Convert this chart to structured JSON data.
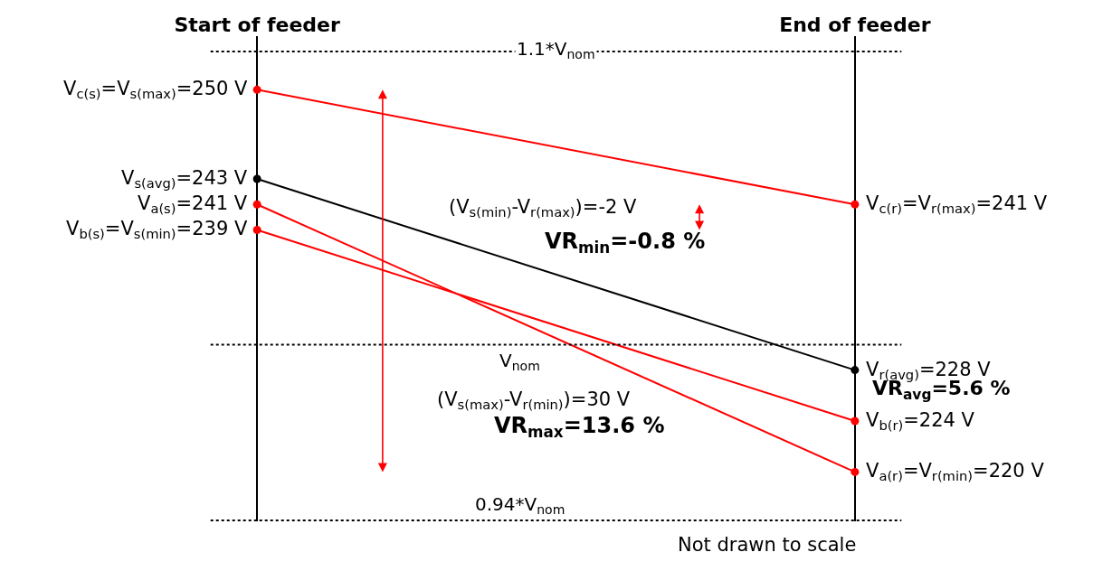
{
  "chart_data": {
    "type": "line",
    "categories": [
      "Start of feeder",
      "End of feeder"
    ],
    "series": [
      {
        "color": "#ff0000",
        "values": [
          250,
          241
        ],
        "value_labels": [
          "V$_{c(s)}$=V$_{s(max)}$=250 V",
          "V$_{c(r)}$=V$_{r(max)}$=241 V"
        ]
      },
      {
        "color": "#000000",
        "values": [
          243,
          228
        ],
        "value_labels": [
          "V$_{s(avg)}$=243 V",
          "V$_{r(avg)}$=228 V"
        ]
      },
      {
        "color": "#ff0000",
        "values": [
          241,
          220
        ],
        "value_labels": [
          "V$_{a(s)}$=241 V",
          "V$_{a(r)}$=V$_{r(min)}$=220 V"
        ]
      },
      {
        "color": "#ff0000",
        "values": [
          239,
          224
        ],
        "value_labels": [
          "V$_{b(s)}$=V$_{s(min)}$=239 V",
          "V$_{b(r)}$=224 V"
        ]
      }
    ],
    "ref_lines": [
      {
        "axis": "y",
        "value": 253,
        "label": "1.1*V$_{nom}$",
        "line_style": "dotted",
        "color": "#000000"
      },
      {
        "axis": "y",
        "value": 230,
        "label": "V$_{nom}$",
        "line_style": "dotted",
        "color": "#000000"
      },
      {
        "axis": "y",
        "value": 216.2,
        "label": "0.94*V$_{nom}$",
        "line_style": "dotted",
        "color": "#000000"
      }
    ],
    "annotations": [
      "(V$_{s(min)}$-V$_{r(max)}$)=-2 V",
      "VR$_{min}$=-0.8 %",
      "(V$_{s(max)}$-V$_{r(min)}$)=30 V",
      "VR$_{max}$=13.6 %",
      "VR$_{avg}$=5.6 %",
      "Not drawn to scale"
    ],
    "grid": "x",
    "marker": "circle",
    "line_style": "solid",
    "tick_labels": "x"
  }
}
